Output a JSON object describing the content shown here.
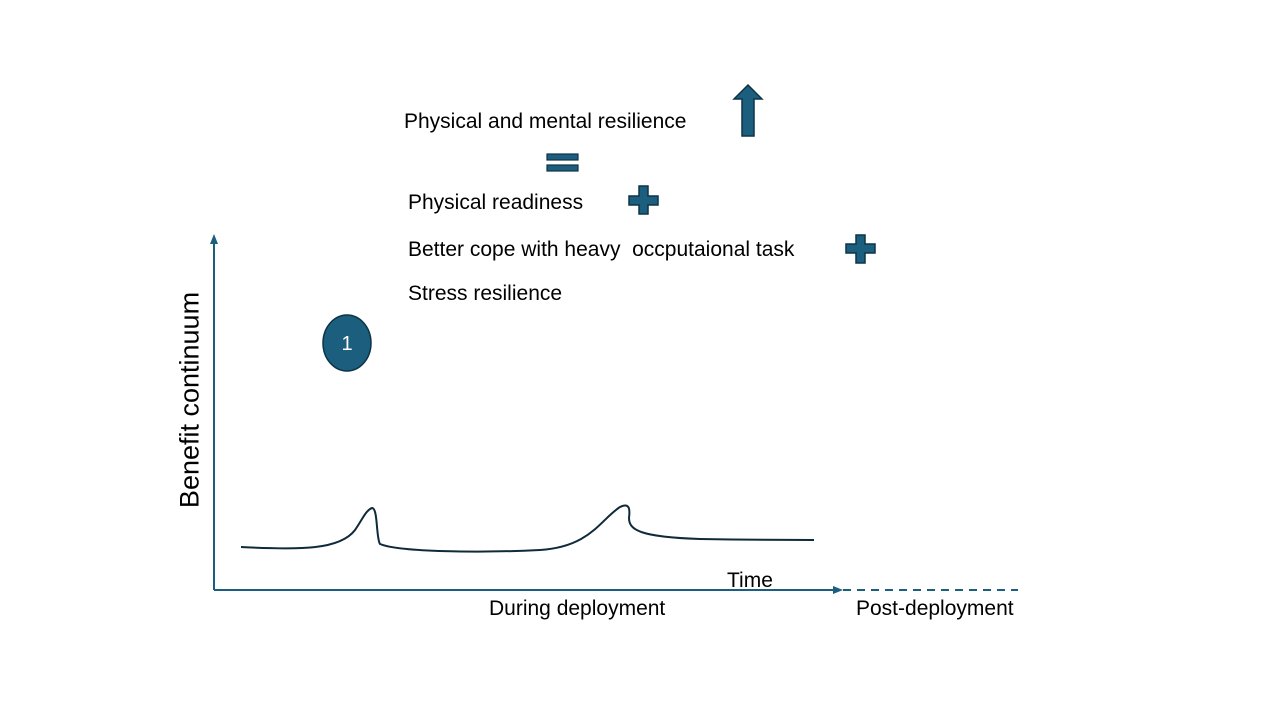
{
  "colors": {
    "accent": "#1b5e7e",
    "accent_dark": "#0d3347",
    "curve": "#0f2a3b"
  },
  "labels": {
    "resilience": "Physical and mental resilience",
    "readiness": "Physical readiness",
    "cope": "Better cope with heavy  occputaional task",
    "stress": "Stress resilience",
    "y_axis": "Benefit continuum",
    "time": "Time",
    "during": "During deployment",
    "post": "Post-deployment"
  },
  "badge": {
    "number": "1"
  },
  "icons": {
    "up_arrow": "up-arrow-icon",
    "equals": "equals-icon",
    "plus": "plus-icon"
  }
}
